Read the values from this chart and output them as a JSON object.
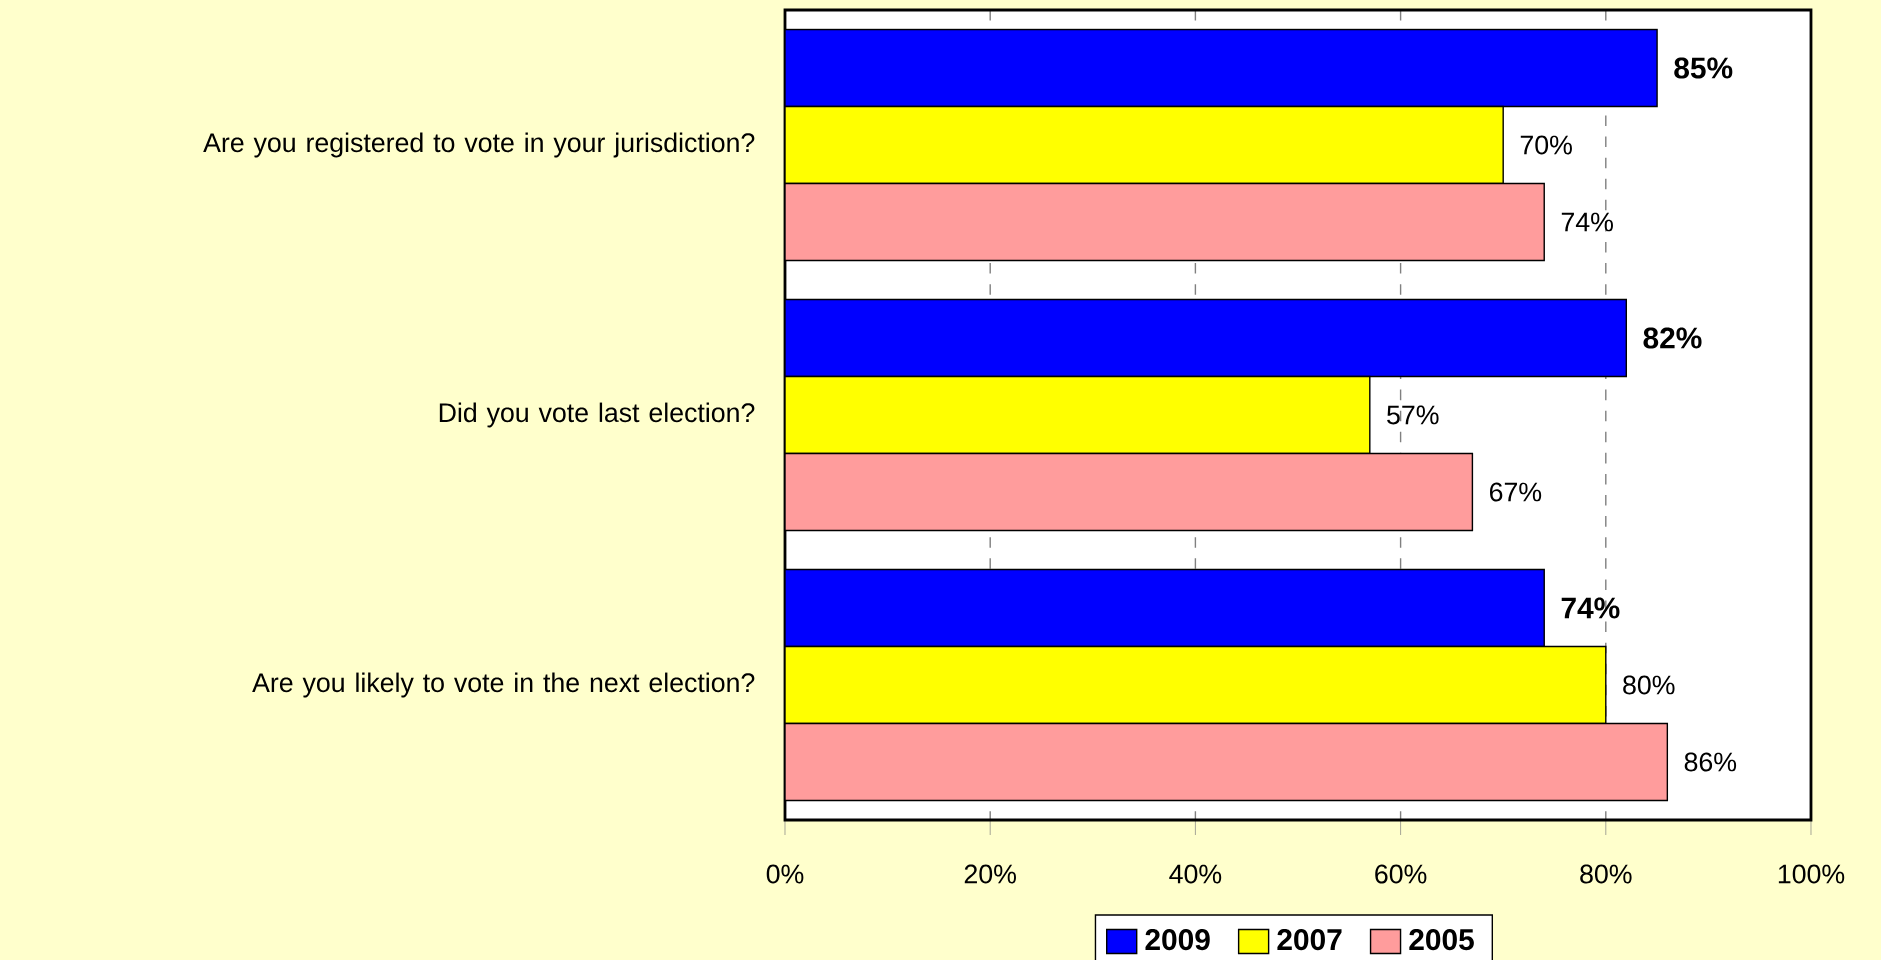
{
  "chart_data": {
    "type": "bar",
    "orientation": "horizontal",
    "categories": [
      "Are you registered to vote in your jurisdiction?",
      "Did you vote last election?",
      "Are you likely to vote in the next election?"
    ],
    "series": [
      {
        "name": "2009",
        "color": "#0000ff",
        "values": [
          85,
          82,
          74
        ],
        "value_labels": [
          "85%",
          "82%",
          "74%"
        ]
      },
      {
        "name": "2007",
        "color": "#ffff00",
        "values": [
          70,
          57,
          80
        ],
        "value_labels": [
          "70%",
          "57%",
          "80%"
        ]
      },
      {
        "name": "2005",
        "color": "#ff9c9c",
        "values": [
          74,
          67,
          86
        ],
        "value_labels": [
          "74%",
          "67%",
          "86%"
        ]
      }
    ],
    "xlim": [
      0,
      100
    ],
    "xticks": [
      {
        "value": 0,
        "label": "0%"
      },
      {
        "value": 20,
        "label": "20%"
      },
      {
        "value": 40,
        "label": "40%"
      },
      {
        "value": 60,
        "label": "60%"
      },
      {
        "value": 80,
        "label": "80%"
      },
      {
        "value": 100,
        "label": "100%"
      }
    ],
    "grid": "x",
    "legend": "bottom"
  }
}
